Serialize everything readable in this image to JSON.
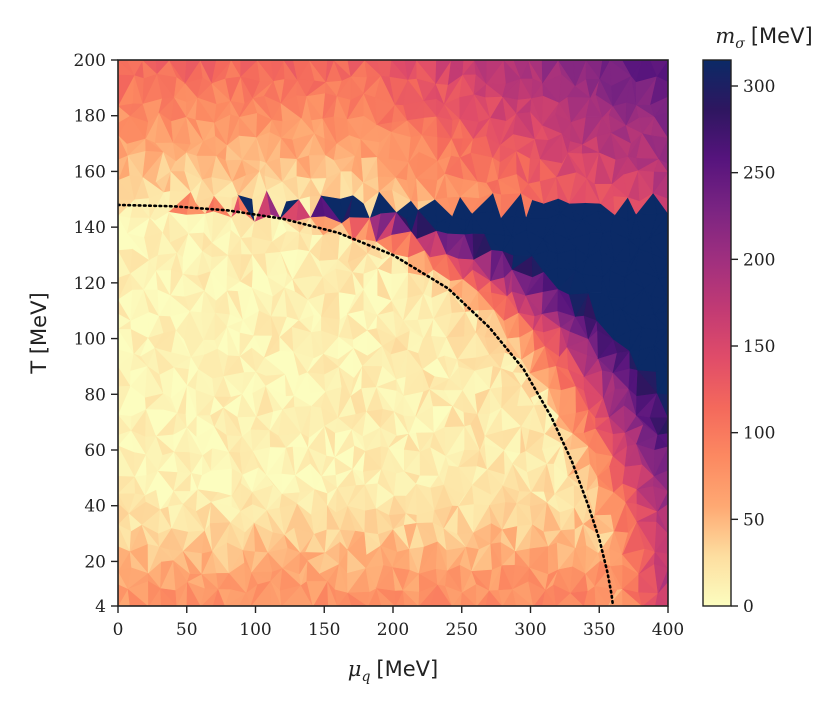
{
  "chart_data": {
    "type": "heatmap",
    "title": "",
    "x": {
      "label_symbol": "μ",
      "label_sub": "q",
      "label_unit": "[MeV]",
      "range": [
        0,
        400
      ],
      "ticks": [
        0,
        50,
        100,
        150,
        200,
        250,
        300,
        350,
        400
      ]
    },
    "y": {
      "label": "T [MeV]",
      "range": [
        4,
        200
      ],
      "ticks": [
        4,
        20,
        40,
        60,
        80,
        100,
        120,
        140,
        160,
        180,
        200
      ]
    },
    "colorbar": {
      "label_symbol": "m",
      "label_sub": "σ",
      "label_unit": "[MeV]",
      "range": [
        0,
        315
      ],
      "ticks": [
        0,
        50,
        100,
        150,
        200,
        250,
        300
      ],
      "colormap": "magma_r",
      "stops": [
        "#fcfdbf",
        "#fddea0",
        "#fea973",
        "#fc8961",
        "#f4695c",
        "#e04c69",
        "#c13a74",
        "#9f2f7f",
        "#7a2482",
        "#56147d",
        "#2e1660",
        "#0b2a66"
      ]
    },
    "phase_boundary": {
      "style": "dotted",
      "color": "#000000",
      "points": [
        [
          0,
          148
        ],
        [
          40,
          147.5
        ],
        [
          80,
          146
        ],
        [
          120,
          143
        ],
        [
          160,
          138
        ],
        [
          200,
          130
        ],
        [
          240,
          118
        ],
        [
          270,
          104
        ],
        [
          295,
          89
        ],
        [
          315,
          72
        ],
        [
          330,
          56
        ],
        [
          342,
          40
        ],
        [
          350,
          28
        ],
        [
          356,
          16
        ],
        [
          359,
          8
        ],
        [
          360,
          4
        ]
      ]
    }
  }
}
